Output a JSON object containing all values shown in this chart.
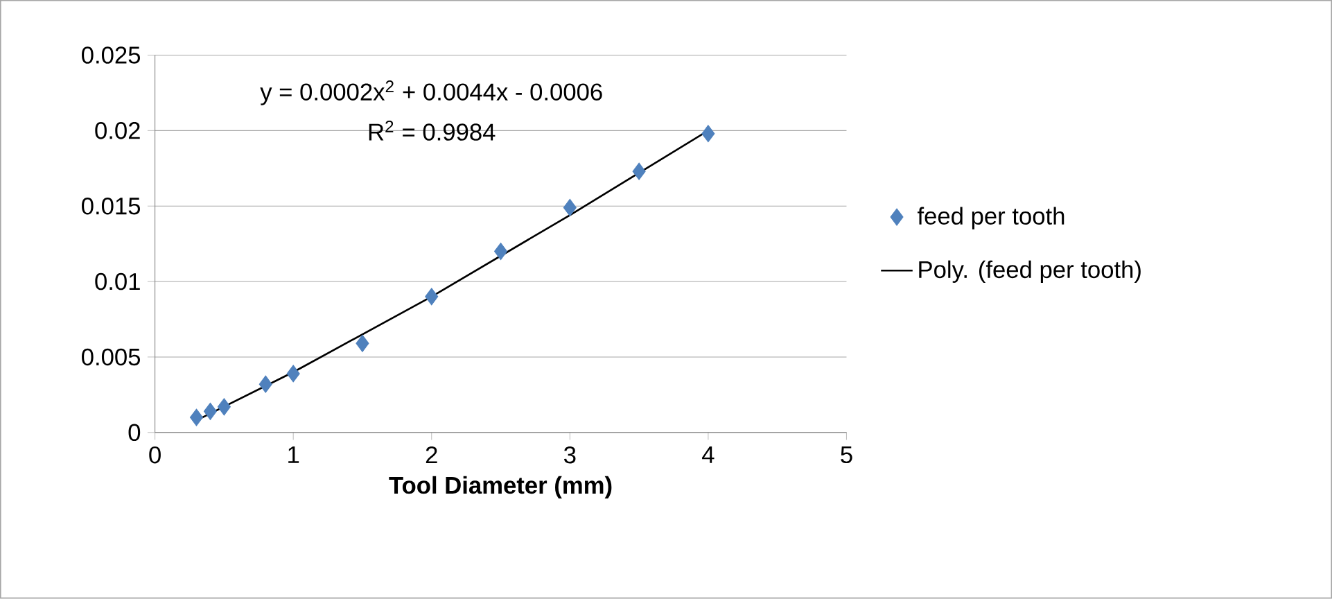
{
  "chart_data": {
    "type": "scatter",
    "xlabel": "Tool Diameter (mm)",
    "annotations": [
      "y = 0.0002x$^{2}$ + 0.0044x - 0.0006",
      "R$^{2}$ = 0.9984"
    ],
    "xlim": [
      0,
      5
    ],
    "xticks": [
      0,
      1,
      2,
      3,
      4,
      5
    ],
    "ylim": [
      0,
      0.025
    ],
    "yticks": [
      0,
      0.005,
      0.01,
      0.015,
      0.02,
      0.025
    ],
    "grid": "y",
    "legend": "right",
    "series": [
      {
        "name": "feed per tooth",
        "type": "scatter",
        "marker": "diamond",
        "color": "#4f81bd",
        "x": [
          0.3,
          0.4,
          0.5,
          0.8,
          1,
          1.5,
          2,
          2.5,
          3,
          3.5,
          4
        ],
        "values": [
          0.001,
          0.0014,
          0.0017,
          0.0032,
          0.0039,
          0.0059,
          0.009,
          0.012,
          0.0149,
          0.0173,
          0.0198
        ]
      },
      {
        "name": "Poly. (feed per tooth)",
        "type": "line",
        "marker": "none",
        "line_style": "solid",
        "color": "#000000",
        "x": [
          0.3,
          1,
          2,
          3,
          4
        ],
        "values": [
          0.0008,
          0.004,
          0.009,
          0.0144,
          0.02
        ]
      }
    ]
  }
}
